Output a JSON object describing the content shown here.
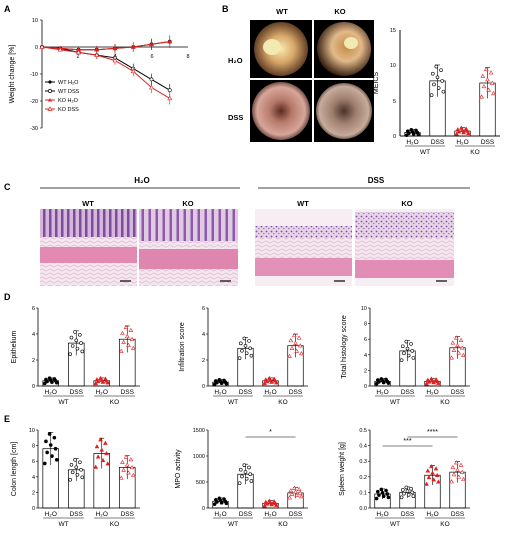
{
  "panels": {
    "A": {
      "letter": "A",
      "ylabel": "Weight change [%]",
      "ticks_y": [
        "10",
        "0",
        "-10",
        "-20",
        "-30"
      ],
      "ticks_x": [
        "2",
        "4",
        "6",
        "8"
      ],
      "legend": [
        "WT H₂O",
        "WT DSS",
        "KO H₂O",
        "KO DSS"
      ]
    },
    "B": {
      "letter": "B",
      "col_labels": [
        "WT",
        "KO"
      ],
      "row_labels": [
        "H₂O",
        "DSS"
      ],
      "ylabel": "MEICS",
      "ticks_y": [
        "15",
        "10",
        "5",
        "0"
      ]
    },
    "C": {
      "letter": "C",
      "group_labels": [
        "H₂O",
        "DSS"
      ],
      "sub_labels": [
        "WT",
        "KO",
        "WT",
        "KO"
      ]
    },
    "D": {
      "letter": "D",
      "plots": [
        {
          "ylabel": "Epithelium",
          "ticks_y": [
            "6",
            "4",
            "2",
            "0"
          ]
        },
        {
          "ylabel": "Infiltration score",
          "ticks_y": [
            "6",
            "4",
            "2",
            "0"
          ]
        },
        {
          "ylabel": "Total histology score",
          "ticks_y": [
            "10",
            "8",
            "6",
            "4",
            "2",
            "0"
          ]
        }
      ]
    },
    "E": {
      "letter": "E",
      "plots": [
        {
          "ylabel": "Colon length [cm]",
          "ticks_y": [
            "10",
            "8",
            "6",
            "4",
            "2",
            "0"
          ]
        },
        {
          "ylabel": "MPO activity",
          "ticks_y": [
            "1500",
            "1000",
            "500",
            "0"
          ],
          "sig": "*"
        },
        {
          "ylabel": "Spleen weight [g]",
          "ticks_y": [
            "0.5",
            "0.4",
            "0.3",
            "0.2",
            "0.1",
            "0.0"
          ],
          "sig": [
            "***",
            "****"
          ]
        }
      ]
    }
  },
  "group_x_labels": [
    "H₂O",
    "DSS",
    "H₂O",
    "DSS"
  ],
  "genotype_labels": [
    "WT",
    "KO"
  ],
  "colors": {
    "wt": "#000000",
    "ko": "#e02020",
    "he_pink": "#e58fb5",
    "he_purple": "#8a5ca8"
  },
  "chart_data": [
    {
      "type": "line",
      "panel": "A",
      "ylabel": "Weight change [%]",
      "ylim": [
        -30,
        10
      ],
      "xlim": [
        0,
        8
      ],
      "series": [
        {
          "name": "WT H₂O",
          "x": [
            0,
            1,
            2,
            3,
            4,
            5,
            6,
            7
          ],
          "y": [
            0,
            -0.5,
            -1,
            -1,
            -0.5,
            0,
            1,
            2
          ]
        },
        {
          "name": "WT DSS",
          "x": [
            0,
            1,
            2,
            3,
            4,
            5,
            6,
            7
          ],
          "y": [
            0,
            -0.5,
            -2,
            -3,
            -4,
            -8,
            -12,
            -16
          ]
        },
        {
          "name": "KO H₂O",
          "x": [
            0,
            1,
            2,
            3,
            4,
            5,
            6,
            7
          ],
          "y": [
            0,
            -0.5,
            -1,
            -1,
            -0.5,
            0,
            1,
            2
          ]
        },
        {
          "name": "KO DSS",
          "x": [
            0,
            1,
            2,
            3,
            4,
            5,
            6,
            7
          ],
          "y": [
            0,
            -1,
            -2,
            -3,
            -5,
            -9,
            -15,
            -19
          ]
        }
      ]
    },
    {
      "type": "bar",
      "panel": "B",
      "ylabel": "MEICS",
      "categories": [
        "WT H₂O",
        "WT DSS",
        "KO H₂O",
        "KO DSS"
      ],
      "values": [
        0.5,
        7.8,
        0.7,
        7.5
      ],
      "ylim": [
        0,
        15
      ]
    },
    {
      "type": "bar",
      "panel": "D1",
      "ylabel": "Epithelium",
      "categories": [
        "WT H₂O",
        "WT DSS",
        "KO H₂O",
        "KO DSS"
      ],
      "values": [
        0.4,
        3.3,
        0.4,
        3.6
      ],
      "ylim": [
        0,
        6
      ]
    },
    {
      "type": "bar",
      "panel": "D2",
      "ylabel": "Infiltration score",
      "categories": [
        "WT H₂O",
        "WT DSS",
        "KO H₂O",
        "KO DSS"
      ],
      "values": [
        0.3,
        2.9,
        0.4,
        3.1
      ],
      "ylim": [
        0,
        6
      ]
    },
    {
      "type": "bar",
      "panel": "D3",
      "ylabel": "Total histology score",
      "categories": [
        "WT H₂O",
        "WT DSS",
        "KO H₂O",
        "KO DSS"
      ],
      "values": [
        0.6,
        4.5,
        0.6,
        4.9
      ],
      "ylim": [
        0,
        10
      ]
    },
    {
      "type": "bar",
      "panel": "E1",
      "ylabel": "Colon length [cm]",
      "categories": [
        "WT H₂O",
        "WT DSS",
        "KO H₂O",
        "KO DSS"
      ],
      "values": [
        7.6,
        4.9,
        7.0,
        5.2
      ],
      "ylim": [
        0,
        10
      ]
    },
    {
      "type": "bar",
      "panel": "E2",
      "ylabel": "MPO activity",
      "categories": [
        "WT H₂O",
        "WT DSS",
        "KO H₂O",
        "KO DSS"
      ],
      "values": [
        130,
        650,
        90,
        290
      ],
      "ylim": [
        0,
        1500
      ]
    },
    {
      "type": "bar",
      "panel": "E3",
      "ylabel": "Spleen weight [g]",
      "categories": [
        "WT H₂O",
        "WT DSS",
        "KO H₂O",
        "KO DSS"
      ],
      "values": [
        0.09,
        0.1,
        0.21,
        0.23
      ],
      "ylim": [
        0,
        0.5
      ]
    }
  ]
}
